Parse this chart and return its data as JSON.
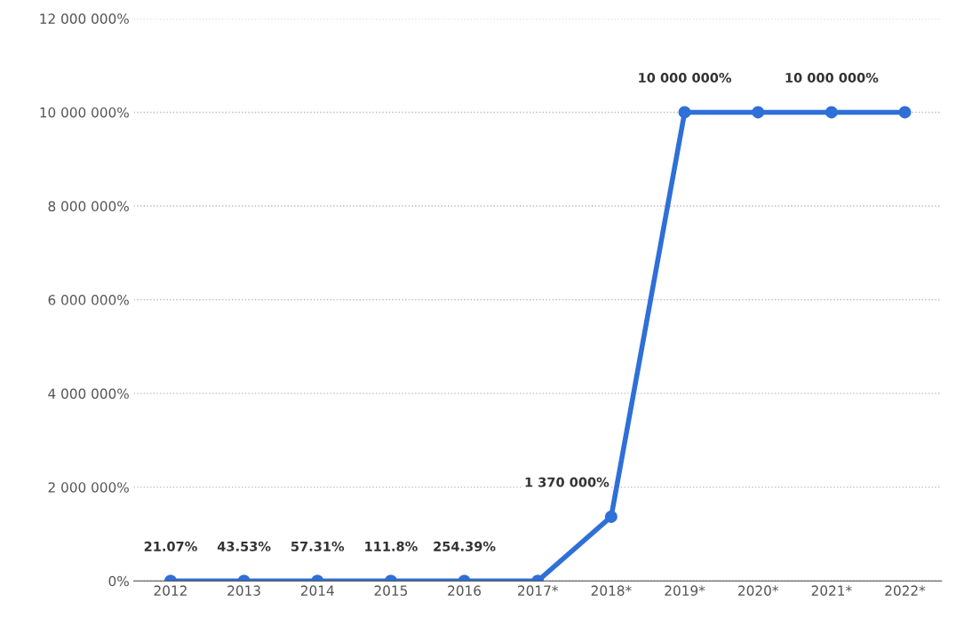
{
  "chart_data": {
    "type": "line",
    "categories": [
      "2012",
      "2013",
      "2014",
      "2015",
      "2016",
      "2017*",
      "2018*",
      "2019*",
      "2020*",
      "2021*",
      "2022*"
    ],
    "series": [
      {
        "color": "#2f6fd8",
        "values": [
          21.07,
          43.53,
          57.31,
          111.8,
          254.39,
          0,
          1370000,
          10000000,
          10000000,
          10000000,
          10000000
        ],
        "value_labels": [
          "21.07%",
          "43.53%",
          "57.31%",
          "111.8%",
          "254.39%",
          null,
          "1 370 000%",
          "10 000 000%",
          null,
          "10 000 000%",
          null
        ]
      }
    ],
    "ylim": [
      0,
      12000000
    ],
    "yticks": [
      {
        "value": 0,
        "label": "0%"
      },
      {
        "value": 2000000,
        "label": "2 000 000%"
      },
      {
        "value": 4000000,
        "label": "4 000 000%"
      },
      {
        "value": 6000000,
        "label": "6 000 000%"
      },
      {
        "value": 8000000,
        "label": "8 000 000%"
      },
      {
        "value": 10000000,
        "label": "10 000 000%"
      },
      {
        "value": 12000000,
        "label": "12 000 000%"
      }
    ],
    "grid": "y",
    "marker": "circle",
    "line_style": "solid",
    "legend": false
  }
}
